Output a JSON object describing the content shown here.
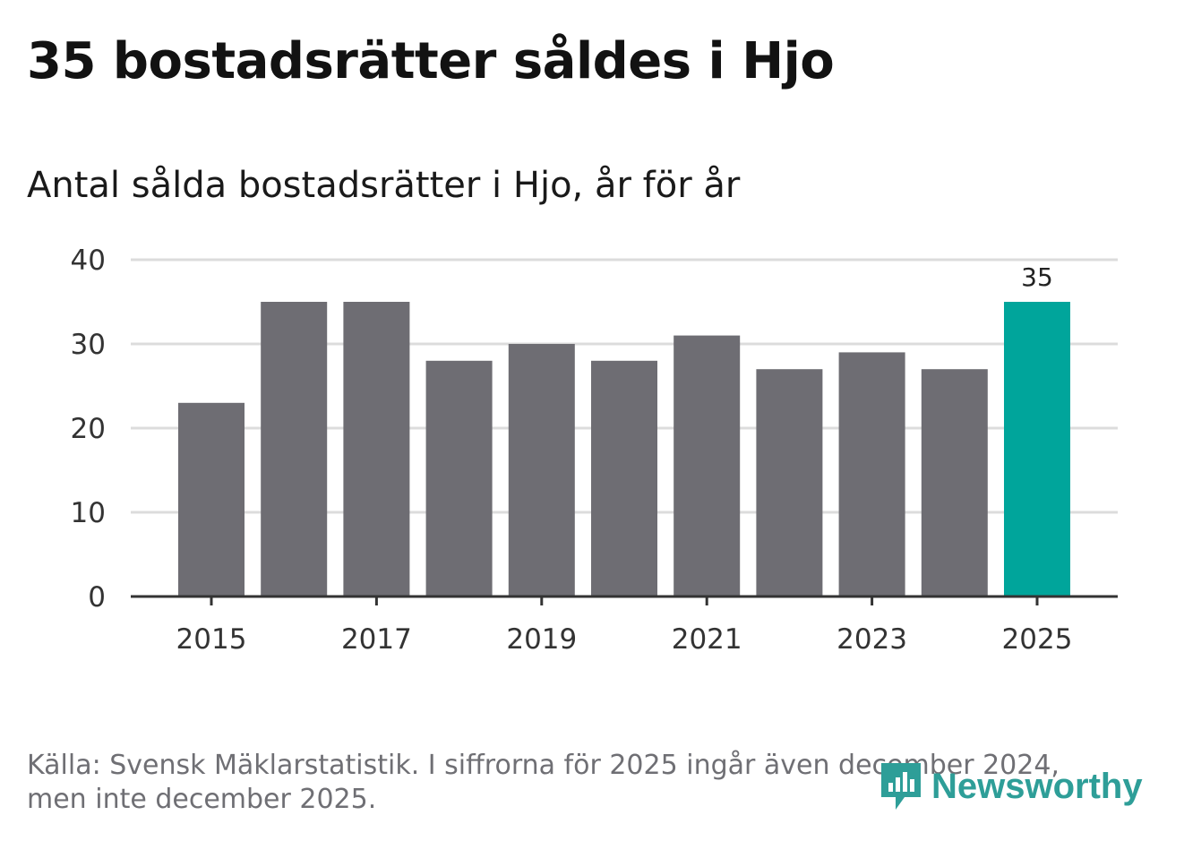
{
  "header": {
    "title": "35 bostadsrätter såldes i Hjo",
    "subtitle": "Antal sålda bostadsrätter i Hjo, år för år"
  },
  "chart_data": {
    "type": "bar",
    "title": "Antal sålda bostadsrätter i Hjo, år för år",
    "categories": [
      "2015",
      "2016",
      "2017",
      "2018",
      "2019",
      "2020",
      "2021",
      "2022",
      "2023",
      "2024",
      "2025"
    ],
    "values": [
      23,
      35,
      35,
      28,
      30,
      28,
      31,
      27,
      29,
      27,
      35
    ],
    "highlight_index": 10,
    "highlight_label": "35",
    "x_tick_labels": [
      "2015",
      "2017",
      "2019",
      "2021",
      "2023",
      "2025"
    ],
    "y_ticks": [
      0,
      10,
      20,
      30,
      40
    ],
    "ylim": [
      0,
      40
    ],
    "xlabel": "",
    "ylabel": "",
    "grid": true,
    "colors": {
      "bar": "#6e6d73",
      "highlight": "#00a59b",
      "grid": "#dcdcdc",
      "axis": "#333333",
      "tick_text": "#333333"
    }
  },
  "footer": {
    "source_line1": "Källa: Svensk Mäklarstatistik. I siffrorna för 2025 ingår även december 2024,",
    "source_line2": "men inte december 2025."
  },
  "logo": {
    "text": "Newsworthy",
    "color": "#2e9e98",
    "icon": "newsworthy-chart-bubble-icon"
  }
}
